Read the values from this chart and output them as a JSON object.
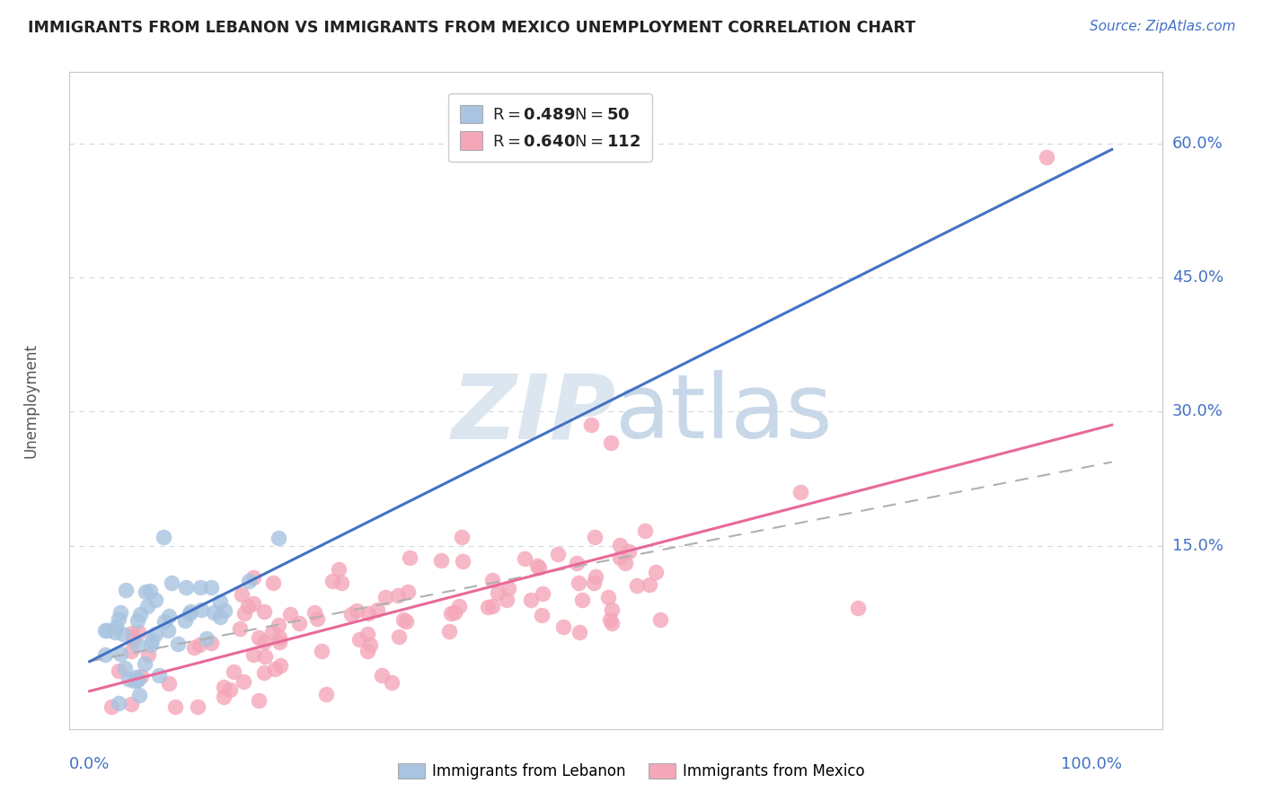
{
  "title": "IMMIGRANTS FROM LEBANON VS IMMIGRANTS FROM MEXICO UNEMPLOYMENT CORRELATION CHART",
  "source": "Source: ZipAtlas.com",
  "ylabel": "Unemployment",
  "ytick_vals": [
    0.15,
    0.3,
    0.45,
    0.6
  ],
  "ytick_labels": [
    "15.0%",
    "30.0%",
    "45.0%",
    "60.0%"
  ],
  "xlim": [
    -0.02,
    1.07
  ],
  "ylim": [
    -0.055,
    0.68
  ],
  "R_lebanon": 0.489,
  "N_lebanon": 50,
  "R_mexico": 0.64,
  "N_mexico": 112,
  "color_lebanon": "#a8c4e0",
  "color_mexico": "#f4a7b9",
  "line_lebanon": "#4472c4",
  "line_mexico": "#e8699a",
  "line_dashed_color": "#b0b0b0",
  "background": "#ffffff",
  "watermark_color": "#dce6f0",
  "title_color": "#222222",
  "source_color": "#4472c4",
  "axis_label_color": "#4472c4",
  "legend_num_color": "#4472c4",
  "grid_color": "#d0d8e0"
}
